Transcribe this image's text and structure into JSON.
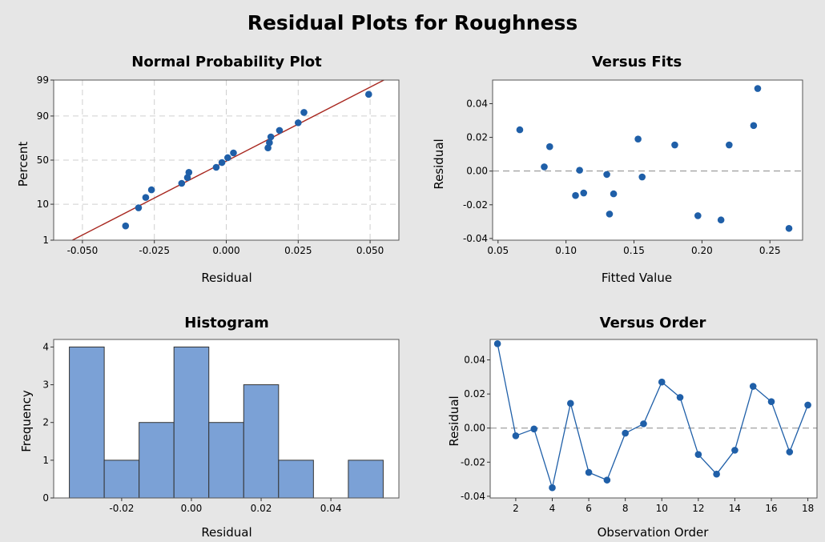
{
  "figure_title": "Residual Plots for Roughness",
  "chart_data": [
    {
      "type": "scatter",
      "title": "Normal Probability Plot",
      "xlabel": "Residual",
      "ylabel": "Percent",
      "xlim": [
        -0.06,
        0.06
      ],
      "xticks": [
        -0.05,
        -0.025,
        0.0,
        0.025,
        0.05
      ],
      "xtick_labels": [
        "-0.050",
        "-0.025",
        "0.000",
        "0.025",
        "0.050"
      ],
      "yscale": "normal-probability",
      "ylim_percent": [
        1,
        99
      ],
      "yticks": [
        1,
        10,
        50,
        90,
        99
      ],
      "ytick_labels": [
        "1",
        "10",
        "50",
        "90",
        "99"
      ],
      "grid": true,
      "fit_line": {
        "color": "#a8271f",
        "x0": -0.0535,
        "x1": 0.0548
      },
      "point_color": "#1f5fa8",
      "points": [
        {
          "x": -0.035,
          "y": 2.8
        },
        {
          "x": -0.0305,
          "y": 8.3
        },
        {
          "x": -0.028,
          "y": 13.9
        },
        {
          "x": -0.026,
          "y": 19.4
        },
        {
          "x": -0.0155,
          "y": 25.0
        },
        {
          "x": -0.0135,
          "y": 30.6
        },
        {
          "x": -0.013,
          "y": 36.1
        },
        {
          "x": -0.0035,
          "y": 41.7
        },
        {
          "x": -0.0015,
          "y": 47.2
        },
        {
          "x": 0.0005,
          "y": 52.8
        },
        {
          "x": 0.0025,
          "y": 58.3
        },
        {
          "x": 0.0145,
          "y": 63.9
        },
        {
          "x": 0.015,
          "y": 69.4
        },
        {
          "x": 0.0155,
          "y": 75.0
        },
        {
          "x": 0.0185,
          "y": 80.6
        },
        {
          "x": 0.025,
          "y": 86.1
        },
        {
          "x": 0.027,
          "y": 91.7
        },
        {
          "x": 0.0495,
          "y": 97.2
        }
      ]
    },
    {
      "type": "scatter",
      "title": "Versus Fits",
      "xlabel": "Fitted Value",
      "ylabel": "Residual",
      "xlim": [
        0.046,
        0.274
      ],
      "ylim": [
        -0.041,
        0.054
      ],
      "xticks": [
        0.05,
        0.1,
        0.15,
        0.2,
        0.25
      ],
      "xtick_labels": [
        "0.05",
        "0.10",
        "0.15",
        "0.20",
        "0.25"
      ],
      "yticks": [
        -0.04,
        -0.02,
        0.0,
        0.02,
        0.04
      ],
      "ytick_labels": [
        "-0.04",
        "-0.02",
        "0.00",
        "0.02",
        "0.04"
      ],
      "reference_line_y": 0,
      "point_color": "#1f5fa8",
      "points": [
        {
          "x": 0.066,
          "y": 0.0245
        },
        {
          "x": 0.084,
          "y": 0.0025
        },
        {
          "x": 0.088,
          "y": 0.0145
        },
        {
          "x": 0.107,
          "y": -0.0145
        },
        {
          "x": 0.11,
          "y": 0.0005
        },
        {
          "x": 0.113,
          "y": -0.013
        },
        {
          "x": 0.13,
          "y": -0.002
        },
        {
          "x": 0.132,
          "y": -0.0255
        },
        {
          "x": 0.135,
          "y": -0.0135
        },
        {
          "x": 0.153,
          "y": 0.019
        },
        {
          "x": 0.156,
          "y": -0.0035
        },
        {
          "x": 0.18,
          "y": 0.0155
        },
        {
          "x": 0.197,
          "y": -0.0265
        },
        {
          "x": 0.214,
          "y": -0.029
        },
        {
          "x": 0.22,
          "y": 0.0155
        },
        {
          "x": 0.238,
          "y": 0.027
        },
        {
          "x": 0.241,
          "y": 0.049
        },
        {
          "x": 0.264,
          "y": -0.034
        }
      ]
    },
    {
      "type": "bar",
      "title": "Histogram",
      "xlabel": "Residual",
      "ylabel": "Frequency",
      "bin_edges": [
        -0.035,
        -0.025,
        -0.015,
        -0.005,
        0.005,
        0.015,
        0.025,
        0.035,
        0.045,
        0.055
      ],
      "values": [
        4,
        1,
        2,
        4,
        2,
        3,
        1,
        0,
        1
      ],
      "xlim": [
        -0.0395,
        0.0595
      ],
      "ylim": [
        0,
        4.2
      ],
      "xticks": [
        -0.02,
        0.0,
        0.02,
        0.04
      ],
      "xtick_labels": [
        "-0.02",
        "0.00",
        "0.02",
        "0.04"
      ],
      "yticks": [
        0,
        1,
        2,
        3,
        4
      ],
      "ytick_labels": [
        "0",
        "1",
        "2",
        "3",
        "4"
      ],
      "bar_color": "#7ba1d6"
    },
    {
      "type": "line",
      "title": "Versus Order",
      "xlabel": "Observation Order",
      "ylabel": "Residual",
      "xlim": [
        0.6,
        18.5
      ],
      "ylim": [
        -0.041,
        0.052
      ],
      "xticks": [
        2,
        4,
        6,
        8,
        10,
        12,
        14,
        16,
        18
      ],
      "xtick_labels": [
        "2",
        "4",
        "6",
        "8",
        "10",
        "12",
        "14",
        "16",
        "18"
      ],
      "yticks": [
        -0.04,
        -0.02,
        0.0,
        0.02,
        0.04
      ],
      "ytick_labels": [
        "-0.04",
        "-0.02",
        "0.00",
        "0.02",
        "0.04"
      ],
      "reference_line_y": 0,
      "line_color": "#1f5fa8",
      "x": [
        1,
        2,
        3,
        4,
        5,
        6,
        7,
        8,
        9,
        10,
        11,
        12,
        13,
        14,
        15,
        16,
        17,
        18
      ],
      "y": [
        0.0495,
        -0.0045,
        -0.0005,
        -0.035,
        0.0145,
        -0.026,
        -0.0305,
        -0.003,
        0.0025,
        0.027,
        0.018,
        -0.0155,
        -0.027,
        -0.013,
        0.0245,
        0.0155,
        -0.014,
        0.0135
      ]
    }
  ]
}
